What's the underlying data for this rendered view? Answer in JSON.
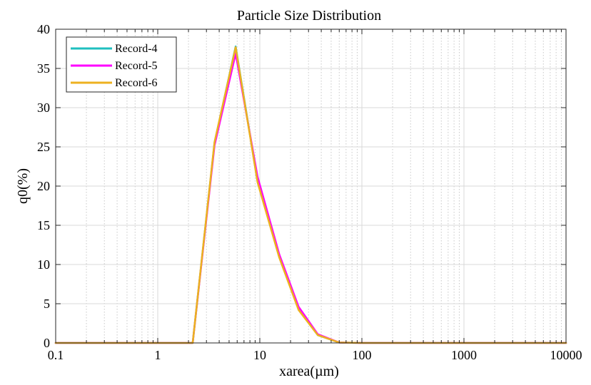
{
  "chart_data": {
    "type": "line",
    "title": "Particle Size Distribution",
    "xlabel": "xarea(µm)",
    "ylabel": "q0(%)",
    "xscale": "log",
    "xlim": [
      0.1,
      10000
    ],
    "ylim": [
      0,
      40
    ],
    "x_ticks": [
      0.1,
      1,
      10,
      100,
      1000,
      10000
    ],
    "x_tick_labels": [
      "0.1",
      "1",
      "10",
      "100",
      "1000",
      "10000"
    ],
    "y_ticks": [
      0,
      5,
      10,
      15,
      20,
      25,
      30,
      35,
      40
    ],
    "y_tick_labels": [
      "0",
      "5",
      "10",
      "15",
      "20",
      "25",
      "30",
      "35",
      "40"
    ],
    "grid": true,
    "legend_position": "top-left",
    "series": [
      {
        "name": "Record-4",
        "color": "#1fbfbf",
        "x": [
          0.1,
          0.5,
          1.5,
          2.2,
          3.6,
          5.8,
          9.5,
          15.5,
          24,
          37,
          60,
          100,
          1000,
          10000
        ],
        "y": [
          0,
          0,
          0,
          0,
          25.5,
          37.8,
          20.6,
          11.0,
          4.3,
          1.0,
          0.05,
          0,
          0,
          0
        ]
      },
      {
        "name": "Record-5",
        "color": "#ff00ff",
        "x": [
          0.1,
          0.5,
          1.5,
          2.2,
          3.6,
          5.8,
          9.5,
          15.5,
          24,
          37,
          60,
          100,
          1000,
          10000
        ],
        "y": [
          0,
          0,
          0,
          0,
          25.2,
          36.9,
          21.2,
          11.3,
          4.6,
          1.1,
          0.05,
          0,
          0,
          0
        ]
      },
      {
        "name": "Record-6",
        "color": "#edb120",
        "x": [
          0.1,
          0.5,
          1.5,
          2.2,
          3.6,
          5.8,
          9.5,
          15.5,
          24,
          37,
          60,
          100,
          1000,
          10000
        ],
        "y": [
          0,
          0,
          0,
          0,
          25.6,
          37.7,
          20.5,
          10.9,
          4.2,
          1.0,
          0.05,
          0,
          0,
          0
        ]
      }
    ]
  }
}
